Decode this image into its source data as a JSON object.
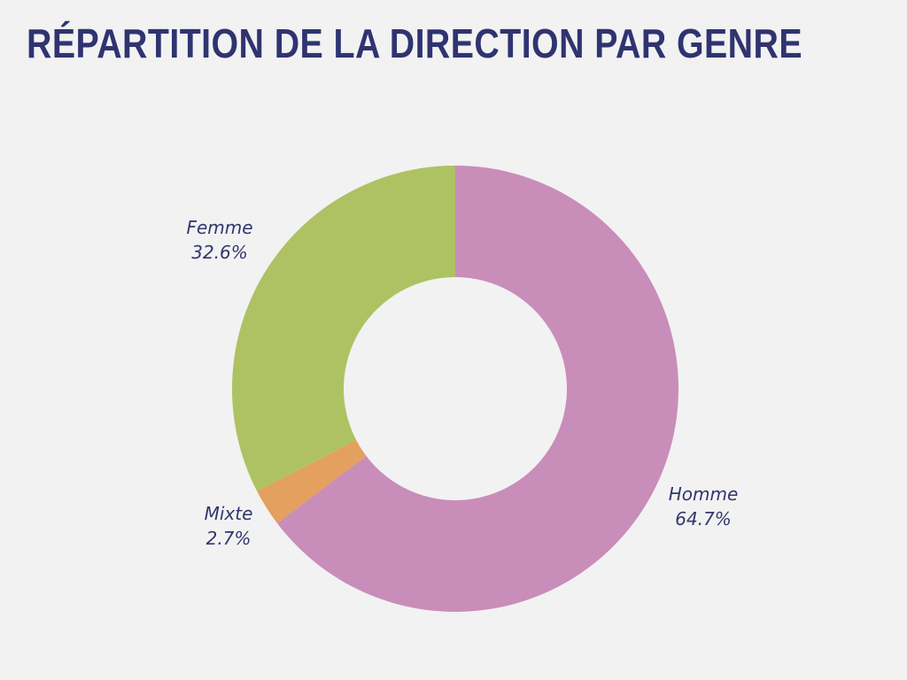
{
  "chart_data": {
    "type": "pie",
    "donut": true,
    "title": "RÉPARTITION DE LA DIRECTION PAR GENRE",
    "slices": [
      {
        "label": "Homme",
        "value": 64.7,
        "display": "64.7%",
        "color": "#C98DBA"
      },
      {
        "label": "Mixte",
        "value": 2.7,
        "display": "2.7%",
        "color": "#E3A05E"
      },
      {
        "label": "Femme",
        "value": 32.6,
        "display": "32.6%",
        "color": "#AEC263"
      }
    ],
    "start_angle": "top",
    "direction": "clockwise",
    "legend": "none"
  }
}
